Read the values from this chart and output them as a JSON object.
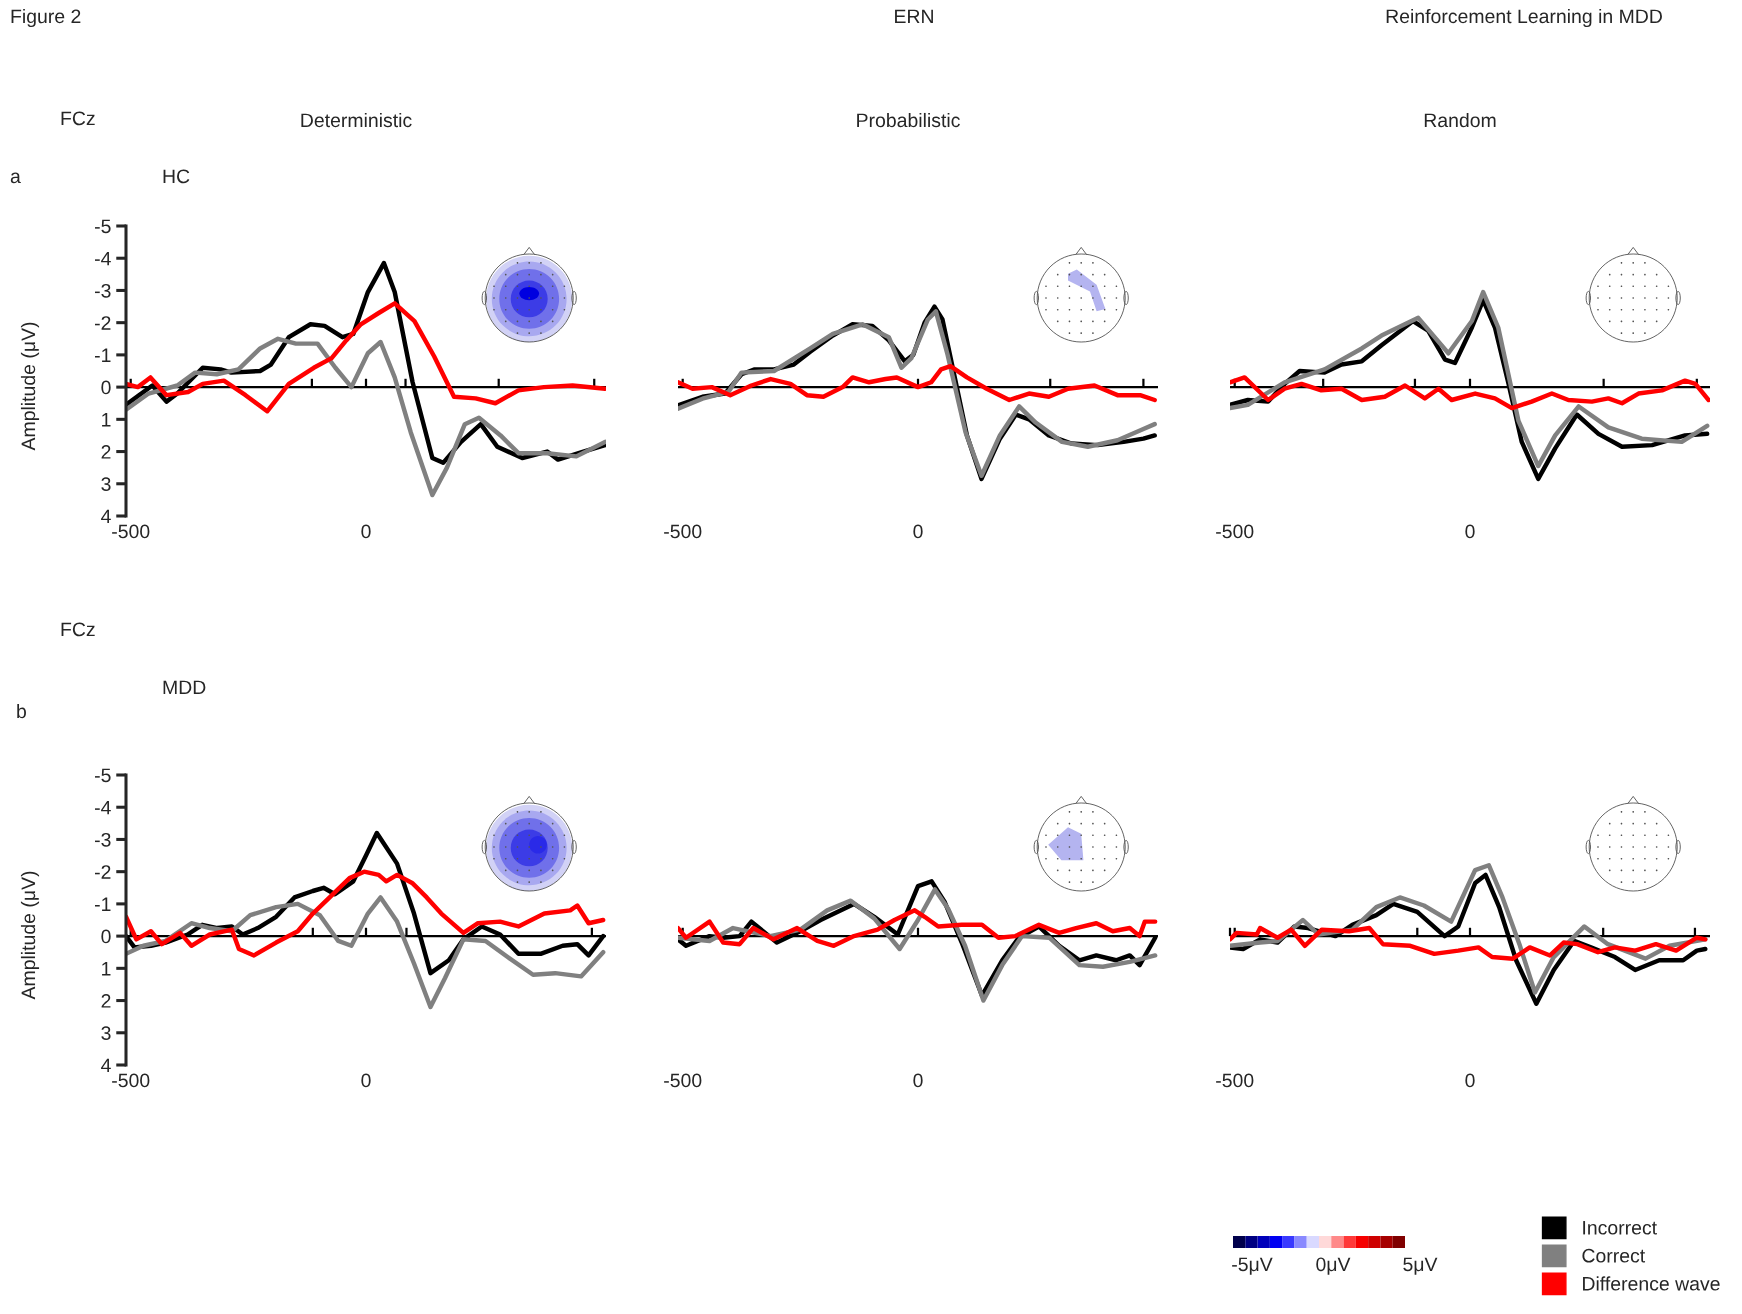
{
  "chart_data": [
    {
      "type": "line",
      "title": "Deterministic",
      "ylabel": "Amplitude (μV)",
      "annotations": [
        "Figure 2",
        "ERN",
        "Reinforcement Learning in MDD",
        "FCz",
        "a",
        "HC"
      ],
      "xlim": [
        -510,
        510
      ],
      "ylim": [
        4,
        -5
      ],
      "yticks": [
        -5,
        -4,
        -3,
        -2,
        -1,
        0,
        1,
        2,
        3,
        4
      ],
      "ref_lines": [
        {
          "axis": "y",
          "value": 0,
          "color": "#000000"
        }
      ],
      "xticks": [
        -500,
        0,
        {
          "value": -115,
          "label": null
        },
        {
          "value": 84,
          "label": null
        },
        {
          "value": 282,
          "label": null
        },
        {
          "value": 485,
          "label": null
        }
      ],
      "marker": "none",
      "line_style": "solid",
      "grid": false,
      "series": [
        {
          "color": "#000000",
          "x": [
            -510,
            -454,
            -424,
            -401,
            -347,
            -309,
            -286,
            -225,
            -202,
            -164,
            -118,
            -88,
            -50,
            -27,
            4,
            38,
            61,
            99,
            141,
            164,
            202,
            244,
            279,
            332,
            385,
            408,
            462,
            508
          ],
          "values": [
            0.55,
            -0.05,
            0.45,
            0.2,
            -0.6,
            -0.55,
            -0.45,
            -0.5,
            -0.7,
            -1.55,
            -1.95,
            -1.9,
            -1.55,
            -1.65,
            -2.95,
            -3.85,
            -2.95,
            -0.15,
            2.2,
            2.35,
            1.7,
            1.15,
            1.85,
            2.2,
            2.0,
            2.25,
            2.0,
            1.8
          ]
        },
        {
          "color": "#808080",
          "x": [
            -510,
            -462,
            -401,
            -363,
            -317,
            -271,
            -225,
            -187,
            -149,
            -103,
            -65,
            -31,
            4,
            31,
            61,
            95,
            141,
            172,
            210,
            240,
            286,
            324,
            385,
            447,
            508
          ],
          "values": [
            0.7,
            0.2,
            -0.05,
            -0.45,
            -0.4,
            -0.55,
            -1.2,
            -1.5,
            -1.35,
            -1.35,
            -0.6,
            0,
            -1.05,
            -1.4,
            -0.3,
            1.4,
            3.35,
            2.5,
            1.15,
            0.95,
            1.5,
            2.05,
            2.05,
            2.15,
            1.7
          ]
        },
        {
          "color": "#ff0000",
          "x": [
            -510,
            -485,
            -458,
            -424,
            -378,
            -347,
            -302,
            -256,
            -210,
            -164,
            -111,
            -73,
            -42,
            -11,
            27,
            61,
            103,
            145,
            187,
            233,
            275,
            324,
            378,
            439,
            508
          ],
          "values": [
            -0.1,
            0,
            -0.3,
            0.25,
            0.15,
            -0.1,
            -0.2,
            0.25,
            0.75,
            -0.1,
            -0.6,
            -0.9,
            -1.45,
            -1.95,
            -2.3,
            -2.6,
            -2.05,
            -0.95,
            0.3,
            0.35,
            0.5,
            0.1,
            0,
            -0.05,
            0.05
          ]
        }
      ]
    },
    {
      "type": "line",
      "title": "Probabilistic",
      "tick_labels": "x",
      "xlim": [
        -510,
        510
      ],
      "ylim": [
        4,
        -5
      ],
      "ref_lines": [
        {
          "axis": "y",
          "value": 0,
          "color": "#000000"
        }
      ],
      "xticks": [
        -500,
        0,
        {
          "value": 281,
          "label": null
        },
        {
          "value": 479,
          "label": null
        }
      ],
      "marker": "none",
      "line_style": "solid",
      "grid": false,
      "series": [
        {
          "color": "#000000",
          "x": [
            -510,
            -458,
            -410,
            -375,
            -347,
            -306,
            -264,
            -229,
            -181,
            -139,
            -97,
            -62,
            -28,
            -10,
            14,
            35,
            52,
            76,
            104,
            135,
            174,
            208,
            236,
            278,
            326,
            382,
            437,
            479,
            503
          ],
          "values": [
            0.57,
            0.3,
            0.2,
            -0.4,
            -0.55,
            -0.55,
            -0.7,
            -1.1,
            -1.6,
            -1.95,
            -1.9,
            -1.45,
            -0.8,
            -1.0,
            -2.0,
            -2.5,
            -2.1,
            -0.45,
            1.5,
            2.85,
            1.6,
            0.85,
            1.0,
            1.5,
            1.75,
            1.8,
            1.7,
            1.6,
            1.5
          ]
        },
        {
          "color": "#808080",
          "x": [
            -510,
            -458,
            -403,
            -375,
            -306,
            -229,
            -181,
            -118,
            -62,
            -35,
            -14,
            21,
            38,
            63,
            101,
            135,
            174,
            215,
            250,
            306,
            361,
            424,
            479,
            503
          ],
          "values": [
            0.67,
            0.36,
            0.15,
            -0.45,
            -0.5,
            -1.2,
            -1.65,
            -1.95,
            -1.55,
            -0.6,
            -0.9,
            -2.1,
            -2.35,
            -1.0,
            1.4,
            2.75,
            1.5,
            0.6,
            1.1,
            1.7,
            1.85,
            1.65,
            1.3,
            1.15
          ]
        },
        {
          "color": "#ff0000",
          "x": [
            -510,
            -479,
            -438,
            -399,
            -354,
            -313,
            -271,
            -236,
            -201,
            -160,
            -139,
            -104,
            -69,
            -45,
            0,
            28,
            49,
            69,
            104,
            146,
            194,
            236,
            278,
            319,
            375,
            424,
            472,
            503
          ],
          "values": [
            -0.15,
            0.05,
            0,
            0.25,
            -0.05,
            -0.25,
            -0.1,
            0.25,
            0.3,
            0,
            -0.3,
            -0.15,
            -0.25,
            -0.3,
            0,
            -0.15,
            -0.55,
            -0.65,
            -0.3,
            0.05,
            0.4,
            0.2,
            0.3,
            0.05,
            -0.05,
            0.25,
            0.25,
            0.4
          ]
        }
      ]
    },
    {
      "type": "line",
      "title": "Random",
      "tick_labels": "x",
      "xlim": [
        -510,
        510
      ],
      "ylim": [
        4,
        -5
      ],
      "ref_lines": [
        {
          "axis": "y",
          "value": 0,
          "color": "#000000"
        }
      ],
      "xticks": [
        -500,
        0,
        {
          "value": -312,
          "label": null
        },
        {
          "value": -117,
          "label": null
        },
        {
          "value": 284,
          "label": null
        },
        {
          "value": 482,
          "label": null
        }
      ],
      "marker": "none",
      "line_style": "solid",
      "grid": false,
      "series": [
        {
          "color": "#000000",
          "x": [
            -510,
            -472,
            -429,
            -394,
            -362,
            -309,
            -273,
            -230,
            -188,
            -152,
            -121,
            -89,
            -53,
            -32,
            4,
            28,
            53,
            82,
            110,
            145,
            181,
            227,
            273,
            323,
            387,
            457,
            504
          ],
          "values": [
            0.55,
            0.4,
            0.45,
            -0.1,
            -0.5,
            -0.45,
            -0.7,
            -0.8,
            -1.3,
            -1.7,
            -2.05,
            -1.75,
            -0.85,
            -0.75,
            -1.85,
            -2.7,
            -1.85,
            -0.1,
            1.7,
            2.85,
            1.9,
            0.85,
            1.45,
            1.85,
            1.8,
            1.5,
            1.45
          ]
        },
        {
          "color": "#808080",
          "x": [
            -510,
            -472,
            -394,
            -309,
            -230,
            -188,
            -110,
            -46,
            4,
            28,
            60,
            103,
            145,
            181,
            231,
            294,
            365,
            450,
            504
          ],
          "values": [
            0.65,
            0.55,
            -0.15,
            -0.55,
            -1.2,
            -1.6,
            -2.15,
            -1.05,
            -2.05,
            -2.95,
            -1.85,
            1.05,
            2.45,
            1.5,
            0.6,
            1.25,
            1.6,
            1.7,
            1.2
          ]
        },
        {
          "color": "#ff0000",
          "x": [
            -510,
            -479,
            -429,
            -394,
            -358,
            -316,
            -273,
            -230,
            -181,
            -138,
            -96,
            -67,
            -39,
            11,
            53,
            89,
            131,
            174,
            209,
            259,
            294,
            323,
            358,
            408,
            457,
            479,
            507
          ],
          "values": [
            -0.15,
            -0.3,
            0.4,
            0.05,
            -0.1,
            0.1,
            0.05,
            0.4,
            0.3,
            -0.05,
            0.35,
            0.05,
            0.4,
            0.2,
            0.35,
            0.65,
            0.45,
            0.2,
            0.4,
            0.45,
            0.35,
            0.5,
            0.2,
            0.1,
            -0.2,
            -0.1,
            0.4
          ]
        }
      ]
    },
    {
      "type": "line",
      "ylabel": "Amplitude (μV)",
      "annotations": [
        "FCz",
        "b",
        "MDD"
      ],
      "xlim": [
        -510,
        510
      ],
      "ylim": [
        4,
        -5
      ],
      "yticks": [
        -5,
        -4,
        -3,
        -2,
        -1,
        0,
        1,
        2,
        3,
        4
      ],
      "ref_lines": [
        {
          "axis": "y",
          "value": 0,
          "color": "#000000"
        }
      ],
      "xticks": [
        -500,
        0,
        {
          "value": -113,
          "label": null
        },
        {
          "value": 86,
          "label": null
        },
        {
          "value": 480,
          "label": null
        }
      ],
      "marker": "none",
      "line_style": "solid",
      "grid": false,
      "series": [
        {
          "color": "#000000",
          "x": [
            -510,
            -492,
            -457,
            -426,
            -379,
            -348,
            -316,
            -285,
            -262,
            -230,
            -191,
            -152,
            -113,
            -90,
            -66,
            -27,
            0,
            23,
            66,
            102,
            137,
            176,
            207,
            246,
            285,
            324,
            371,
            418,
            449,
            473,
            504
          ],
          "values": [
            0,
            0.35,
            0.3,
            0.2,
            -0.05,
            -0.35,
            -0.25,
            -0.3,
            -0.05,
            -0.25,
            -0.6,
            -1.2,
            -1.4,
            -1.5,
            -1.3,
            -1.7,
            -2.5,
            -3.2,
            -2.25,
            -0.7,
            1.15,
            0.75,
            0.1,
            -0.3,
            -0.05,
            0.55,
            0.55,
            0.3,
            0.25,
            0.6,
            0
          ]
        },
        {
          "color": "#808080",
          "x": [
            -510,
            -473,
            -426,
            -371,
            -332,
            -285,
            -246,
            -191,
            -145,
            -98,
            -59,
            -31,
            4,
            31,
            66,
            102,
            137,
            168,
            207,
            254,
            301,
            355,
            402,
            457,
            504
          ],
          "values": [
            0.55,
            0.3,
            0.15,
            -0.4,
            -0.25,
            -0.15,
            -0.65,
            -0.9,
            -1.0,
            -0.65,
            0.15,
            0.3,
            -0.7,
            -1.2,
            -0.45,
            0.85,
            2.2,
            1.3,
            0.1,
            0.15,
            0.65,
            1.2,
            1.15,
            1.25,
            0.5
          ]
        },
        {
          "color": "#ff0000",
          "x": [
            -510,
            -488,
            -457,
            -434,
            -395,
            -371,
            -332,
            -285,
            -270,
            -238,
            -191,
            -145,
            -113,
            -74,
            -35,
            -4,
            27,
            43,
            66,
            98,
            129,
            160,
            207,
            238,
            285,
            324,
            379,
            434,
            449,
            473,
            504
          ],
          "values": [
            -0.6,
            0.1,
            -0.15,
            0.25,
            -0.1,
            0.3,
            -0.05,
            -0.2,
            0.4,
            0.6,
            0.2,
            -0.15,
            -0.7,
            -1.25,
            -1.8,
            -2.0,
            -1.9,
            -1.7,
            -1.9,
            -1.65,
            -1.2,
            -0.7,
            -0.1,
            -0.4,
            -0.45,
            -0.3,
            -0.7,
            -0.8,
            -0.95,
            -0.4,
            -0.5
          ]
        }
      ]
    },
    {
      "type": "line",
      "tick_labels": "x",
      "xlim": [
        -510,
        510
      ],
      "ylim": [
        4,
        -5
      ],
      "ref_lines": [
        {
          "axis": "y",
          "value": 0,
          "color": "#000000"
        }
      ],
      "xticks": [
        -500,
        0
      ],
      "marker": "none",
      "line_style": "solid",
      "grid": false,
      "series": [
        {
          "color": "#000000",
          "x": [
            -510,
            -493,
            -443,
            -414,
            -379,
            -354,
            -300,
            -250,
            -207,
            -136,
            -93,
            -43,
            0,
            29,
            57,
            93,
            136,
            179,
            214,
            257,
            300,
            343,
            379,
            421,
            450,
            471,
            504
          ],
          "values": [
            0.1,
            0.3,
            0,
            0.05,
            0,
            -0.45,
            0.2,
            -0.15,
            -0.5,
            -1.0,
            -0.6,
            -0.05,
            -1.55,
            -1.7,
            -1.05,
            0.2,
            1.85,
            0.75,
            0.05,
            -0.3,
            0.3,
            0.75,
            0.6,
            0.75,
            0.6,
            0.9,
            0.05
          ]
        },
        {
          "color": "#808080",
          "x": [
            -510,
            -443,
            -393,
            -314,
            -250,
            -193,
            -143,
            -93,
            -39,
            0,
            36,
            64,
            100,
            139,
            179,
            221,
            279,
            343,
            393,
            450,
            504
          ],
          "values": [
            0.05,
            0.15,
            -0.25,
            0,
            -0.2,
            -0.8,
            -1.1,
            -0.55,
            0.4,
            -0.5,
            -1.45,
            -0.85,
            0.3,
            2.0,
            0.9,
            0,
            0.05,
            0.9,
            0.95,
            0.8,
            0.6
          ]
        },
        {
          "color": "#ff0000",
          "x": [
            -510,
            -493,
            -443,
            -414,
            -379,
            -350,
            -307,
            -257,
            -214,
            -179,
            -136,
            -86,
            -50,
            -7,
            14,
            43,
            93,
            136,
            171,
            207,
            257,
            300,
            336,
            379,
            414,
            450,
            471,
            482,
            504
          ],
          "values": [
            -0.25,
            0.05,
            -0.45,
            0.2,
            0.25,
            -0.25,
            0.1,
            -0.25,
            0.15,
            0.3,
            0,
            -0.2,
            -0.5,
            -0.8,
            -0.6,
            -0.3,
            -0.35,
            -0.35,
            0.05,
            0,
            -0.35,
            -0.1,
            -0.25,
            -0.4,
            -0.15,
            -0.25,
            0,
            -0.45,
            -0.45
          ]
        }
      ]
    },
    {
      "type": "line",
      "tick_labels": "x",
      "legend": "bottom right",
      "annotations": [
        "-5μV",
        "0μV",
        "5μV"
      ],
      "xlim": [
        -510,
        510
      ],
      "ylim": [
        4,
        -5
      ],
      "ref_lines": [
        {
          "axis": "y",
          "value": 0,
          "color": "#000000"
        }
      ],
      "xticks": [
        -500,
        0,
        {
          "value": -510,
          "label": null
        },
        {
          "value": -112,
          "label": null
        },
        {
          "value": 283,
          "label": null
        },
        {
          "value": 478,
          "label": null
        }
      ],
      "marker": "none",
      "line_style": "solid",
      "grid": false,
      "series": [
        {
          "name": "Incorrect",
          "color": "#000000",
          "x": [
            -510,
            -482,
            -446,
            -409,
            -373,
            -344,
            -286,
            -250,
            -199,
            -163,
            -112,
            -54,
            -25,
            11,
            33,
            62,
            98,
            141,
            178,
            221,
            257,
            308,
            351,
            402,
            453,
            482,
            500
          ],
          "values": [
            0.35,
            0.4,
            0.1,
            0.2,
            -0.3,
            -0.25,
            0,
            -0.35,
            -0.65,
            -1.0,
            -0.75,
            0,
            -0.3,
            -1.65,
            -1.9,
            -0.9,
            0.75,
            2.1,
            1.05,
            0.15,
            0.35,
            0.65,
            1.05,
            0.75,
            0.75,
            0.45,
            0.4
          ]
        },
        {
          "name": "Correct",
          "color": "#808080",
          "x": [
            -510,
            -446,
            -409,
            -355,
            -322,
            -250,
            -199,
            -149,
            -98,
            -40,
            11,
            40,
            69,
            105,
            138,
            178,
            243,
            293,
            373,
            424,
            500
          ],
          "values": [
            0.3,
            0.2,
            0.15,
            -0.5,
            -0.05,
            -0.2,
            -0.9,
            -1.2,
            -0.95,
            -0.45,
            -2.05,
            -2.2,
            -1.2,
            0.25,
            1.75,
            0.65,
            -0.3,
            0.25,
            0.7,
            0.3,
            0.1
          ]
        },
        {
          "name": "Difference wave",
          "color": "#ff0000",
          "x": [
            -510,
            -496,
            -453,
            -446,
            -409,
            -380,
            -351,
            -315,
            -257,
            -214,
            -185,
            -127,
            -76,
            -25,
            18,
            47,
            91,
            127,
            170,
            199,
            228,
            272,
            308,
            351,
            395,
            438,
            482,
            500
          ],
          "values": [
            0.1,
            -0.1,
            -0.05,
            -0.25,
            0.05,
            -0.2,
            0.3,
            -0.2,
            -0.15,
            -0.25,
            0.25,
            0.3,
            0.55,
            0.45,
            0.35,
            0.65,
            0.7,
            0.35,
            0.6,
            0.2,
            0.25,
            0.5,
            0.35,
            0.45,
            0.25,
            0.45,
            0.05,
            0.1
          ]
        }
      ]
    }
  ]
}
